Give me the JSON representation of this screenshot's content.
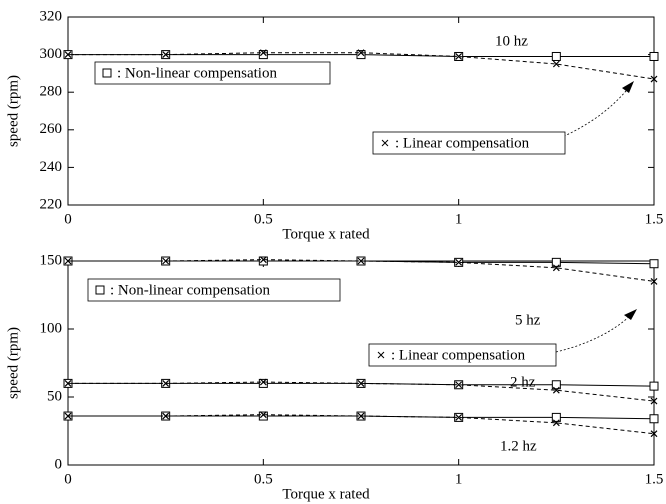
{
  "chart_data": [
    {
      "type": "line",
      "xlabel": "Torque  x rated",
      "ylabel": "speed (rpm)",
      "x": [
        0,
        0.25,
        0.5,
        0.75,
        1,
        1.25,
        1.5
      ],
      "xlim": [
        0,
        1.5
      ],
      "xticks": [
        0,
        0.5,
        1,
        1.5
      ],
      "ylim": [
        220,
        320
      ],
      "yticks": [
        220,
        240,
        260,
        280,
        300,
        320
      ],
      "color": "#000000",
      "legend": [
        {
          "name": ": Non-linear compensation",
          "marker": "square",
          "dash": false
        },
        {
          "name": ": Linear compensation",
          "marker": "x",
          "dash": true
        }
      ],
      "series": [
        {
          "label": "10 hz",
          "lines": [
            {
              "values": [
                300,
                300,
                300,
                300,
                299,
                299,
                299
              ]
            },
            {
              "values": [
                300,
                300,
                301,
                301,
                299,
                295,
                287
              ]
            }
          ]
        }
      ]
    },
    {
      "type": "line",
      "xlabel": "Torque  x rated",
      "ylabel": "speed (rpm)",
      "x": [
        0,
        0.25,
        0.5,
        0.75,
        1,
        1.25,
        1.5
      ],
      "xlim": [
        0,
        1.5
      ],
      "xticks": [
        0,
        0.5,
        1,
        1.5
      ],
      "ylim": [
        0,
        150
      ],
      "yticks": [
        0,
        50,
        100,
        150
      ],
      "color": "#000000",
      "legend": [
        {
          "name": ": Non-linear compensation",
          "marker": "square",
          "dash": false
        },
        {
          "name": ": Linear compensation",
          "marker": "x",
          "dash": true
        }
      ],
      "series": [
        {
          "label": "5 hz",
          "lines": [
            {
              "values": [
                150,
                150,
                150,
                150,
                149,
                149,
                148
              ]
            },
            {
              "values": [
                150,
                150,
                151,
                150,
                149,
                145,
                135
              ]
            }
          ]
        },
        {
          "label": "2 hz",
          "lines": [
            {
              "values": [
                60,
                60,
                60,
                60,
                59,
                59,
                58
              ]
            },
            {
              "values": [
                60,
                60,
                61,
                60,
                59,
                55,
                47
              ]
            }
          ]
        },
        {
          "label": "1.2 hz",
          "lines": [
            {
              "values": [
                36,
                36,
                36,
                36,
                35,
                35,
                34
              ]
            },
            {
              "values": [
                36,
                36,
                37,
                36,
                35,
                31,
                23
              ]
            }
          ]
        }
      ]
    }
  ]
}
